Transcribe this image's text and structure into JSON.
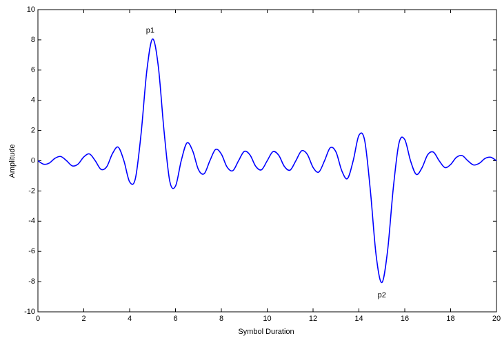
{
  "chart_data": {
    "type": "line",
    "xlabel": "Symbol Duration",
    "ylabel": "Amplitude",
    "x": [
      0,
      0.25,
      0.5,
      0.75,
      1,
      1.25,
      1.5,
      1.75,
      2,
      2.25,
      2.5,
      2.75,
      3,
      3.25,
      3.5,
      3.75,
      4,
      4.25,
      4.5,
      4.75,
      5,
      5.25,
      5.5,
      5.75,
      6,
      6.25,
      6.5,
      6.75,
      7,
      7.25,
      7.5,
      7.75,
      8,
      8.25,
      8.5,
      8.75,
      9,
      9.25,
      9.5,
      9.75,
      10,
      10.25,
      10.5,
      10.75,
      11,
      11.25,
      11.5,
      11.75,
      12,
      12.25,
      12.5,
      12.75,
      13,
      13.25,
      13.5,
      13.75,
      14,
      14.25,
      14.5,
      14.75,
      15,
      15.25,
      15.5,
      15.75,
      16,
      16.25,
      16.5,
      16.75,
      17,
      17.25,
      17.5,
      17.75,
      18,
      18.25,
      18.5,
      18.75,
      19,
      19.25,
      19.5,
      19.75,
      20
    ],
    "series": [
      {
        "color": "#0000ff",
        "values": [
          0,
          -0.23,
          -0.15,
          0.17,
          0.28,
          0,
          -0.34,
          -0.22,
          0.25,
          0.45,
          0,
          -0.57,
          -0.4,
          0.47,
          0.9,
          0,
          -1.4,
          -1.18,
          1.8,
          5.96,
          8.06,
          6.25,
          1.98,
          -1.35,
          -1.68,
          0,
          1.18,
          0.65,
          -0.58,
          -0.86,
          0,
          0.75,
          0.44,
          -0.42,
          -0.66,
          0,
          0.62,
          0.38,
          -0.37,
          -0.6,
          0,
          0.6,
          0.37,
          -0.38,
          -0.62,
          0,
          0.66,
          0.42,
          -0.44,
          -0.75,
          0,
          0.86,
          0.58,
          -0.65,
          -1.18,
          0,
          1.68,
          1.35,
          -1.98,
          -6.25,
          -8.06,
          -5.96,
          -1.8,
          1.18,
          1.4,
          0,
          -0.9,
          -0.47,
          0.4,
          0.57,
          0,
          -0.45,
          -0.25,
          0.22,
          0.34,
          0,
          -0.28,
          -0.17,
          0.15,
          0.23,
          0
        ]
      }
    ],
    "annotations": [
      {
        "text": "p1",
        "x": 4.9,
        "y": 8.6
      },
      {
        "text": "p2",
        "x": 15,
        "y": -8.9
      }
    ],
    "xlim": [
      0,
      20
    ],
    "ylim": [
      -10,
      10
    ],
    "xticks": [
      0,
      2,
      4,
      6,
      8,
      10,
      12,
      14,
      16,
      18,
      20
    ],
    "yticks": [
      -10,
      -8,
      -6,
      -4,
      -2,
      0,
      2,
      4,
      6,
      8,
      10
    ]
  }
}
